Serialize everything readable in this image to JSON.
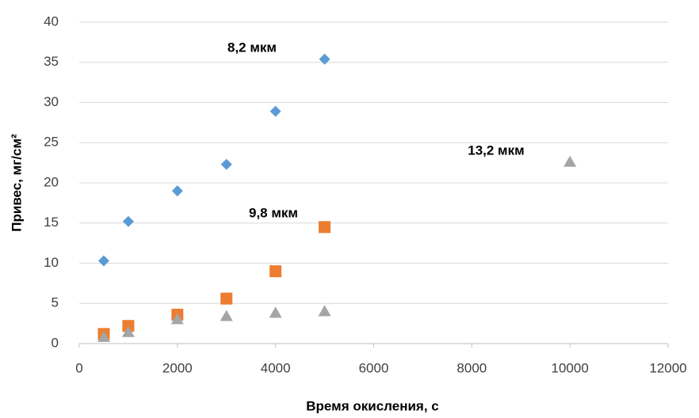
{
  "chart_data": {
    "type": "scatter",
    "x_label": "Время окисления, с",
    "y_label": "Привес, мг/см²",
    "xlim": [
      0,
      12000
    ],
    "xticks": [
      0,
      2000,
      4000,
      6000,
      8000,
      10000,
      12000
    ],
    "ylim": [
      0,
      40
    ],
    "yticks": [
      0,
      5,
      10,
      15,
      20,
      25,
      30,
      35,
      40
    ],
    "grid": true,
    "annotations": [
      "8,2 мкм",
      "9,8 мкм",
      "13,2 мкм"
    ],
    "series": [
      {
        "color": "#5b9bd5",
        "marker": "diamond",
        "x": [
          500,
          1000,
          2000,
          3000,
          4000,
          5000
        ],
        "values": [
          10.3,
          15.2,
          19,
          22.3,
          28.9,
          35.4
        ]
      },
      {
        "color": "#ed7d31",
        "marker": "square",
        "x": [
          500,
          1000,
          2000,
          3000,
          4000,
          5000
        ],
        "values": [
          1.2,
          2.2,
          3.6,
          5.6,
          9,
          14.5
        ]
      },
      {
        "color": "#a5a5a5",
        "marker": "triangle",
        "x": [
          500,
          1000,
          2000,
          3000,
          4000,
          5000,
          10000
        ],
        "values": [
          0.8,
          1.4,
          3,
          3.4,
          3.8,
          4,
          22.6
        ]
      }
    ]
  }
}
